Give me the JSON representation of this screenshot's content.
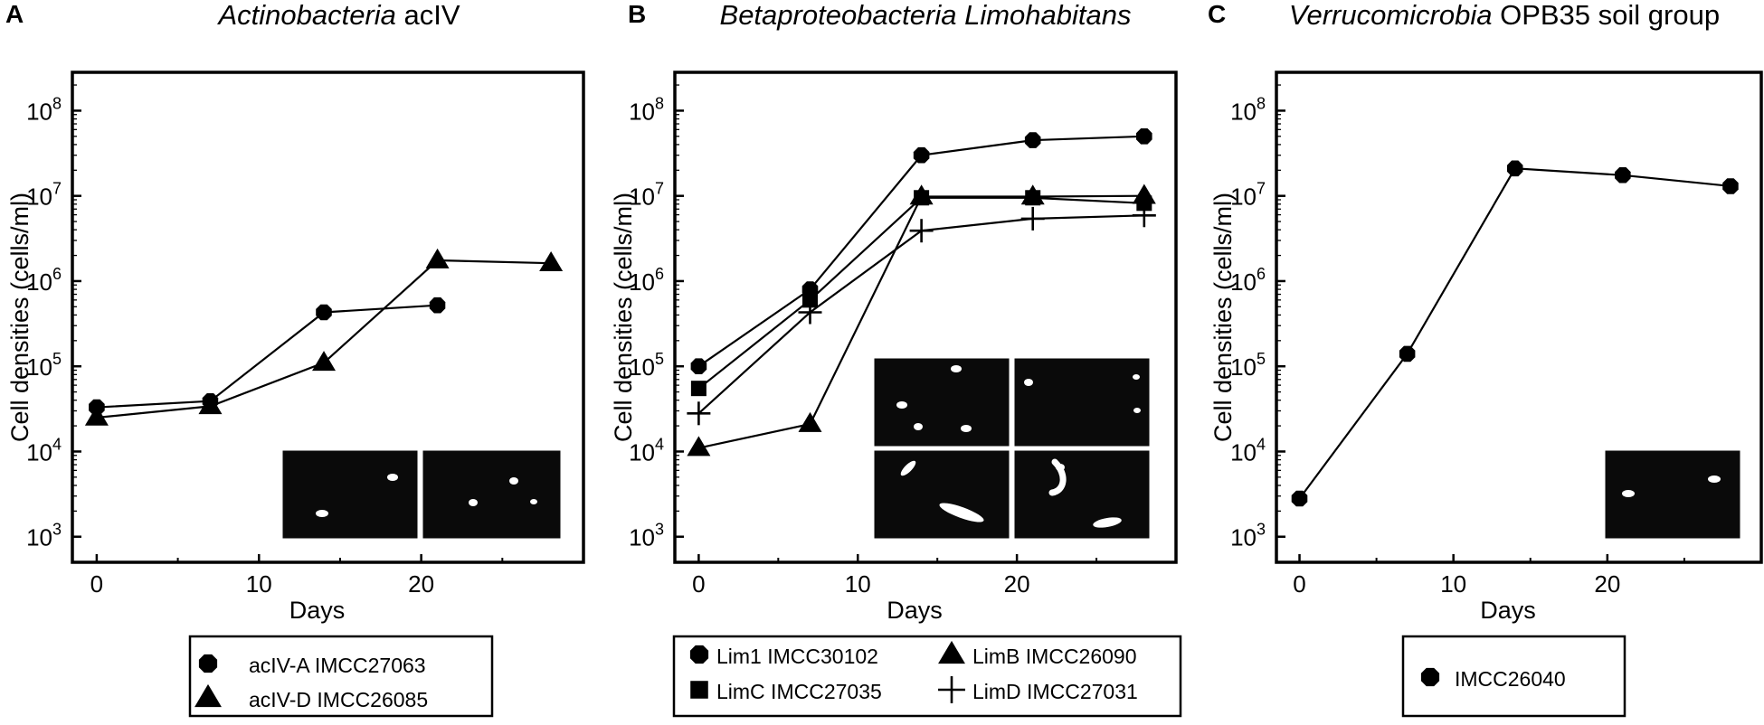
{
  "chart_data": [
    {
      "type": "line",
      "panel_letter": "A",
      "title_italic": "Actinobacteria",
      "title_rest": " acIV",
      "xlabel": "Days",
      "ylabel": "Cell densities (cells/ml)",
      "xlim": [
        -1.5,
        30
      ],
      "ylim_log10": [
        2.7,
        8.45
      ],
      "y_scale": "log",
      "x_ticks": [
        0,
        10,
        20
      ],
      "y_tick_exponents": [
        3,
        4,
        5,
        6,
        7,
        8
      ],
      "series": [
        {
          "name": "acIV-A IMCC27063",
          "marker": "circle",
          "x": [
            0,
            7,
            14,
            21
          ],
          "y": [
            33000,
            39000,
            430000,
            520000
          ]
        },
        {
          "name": "acIV-D IMCC26085",
          "marker": "triangle",
          "x": [
            0,
            7,
            14,
            21,
            28
          ],
          "y": [
            25000,
            34000,
            110000,
            1750000,
            1620000
          ]
        }
      ],
      "legend_position": "below plot"
    },
    {
      "type": "line",
      "panel_letter": "B",
      "title_italic": "Betaproteobacteria Limohabitans",
      "title_rest": "",
      "xlabel": "Days",
      "ylabel": "Cell densities (cells/ml)",
      "xlim": [
        -1.5,
        30
      ],
      "ylim_log10": [
        2.7,
        8.45
      ],
      "y_scale": "log",
      "x_ticks": [
        0,
        10,
        20
      ],
      "y_tick_exponents": [
        3,
        4,
        5,
        6,
        7,
        8
      ],
      "series": [
        {
          "name": "Lim1 IMCC30102",
          "marker": "circle",
          "x": [
            0,
            7,
            14,
            21,
            28
          ],
          "y": [
            100000,
            800000,
            30000000,
            45000000,
            50000000
          ]
        },
        {
          "name": "LimB IMCC26090",
          "marker": "triangle",
          "x": [
            0,
            7,
            14,
            21,
            28
          ],
          "y": [
            11000,
            21000,
            9800000,
            9800000,
            10000000
          ]
        },
        {
          "name": "LimC IMCC27035",
          "marker": "square",
          "x": [
            0,
            7,
            14,
            21,
            28
          ],
          "y": [
            55000,
            600000,
            9500000,
            9500000,
            8200000
          ]
        },
        {
          "name": "LimD IMCC27031",
          "marker": "plus",
          "x": [
            0,
            7,
            14,
            21,
            28
          ],
          "y": [
            28000,
            430000,
            3900000,
            5400000,
            5900000
          ]
        }
      ],
      "legend_position": "below plot"
    },
    {
      "type": "line",
      "panel_letter": "C",
      "title_italic": "Verrucomicrobia",
      "title_rest": " OPB35 soil group",
      "xlabel": "Days",
      "ylabel": "Cell densities (cells/ml)",
      "xlim": [
        -1.5,
        30
      ],
      "ylim_log10": [
        2.7,
        8.45
      ],
      "y_scale": "log",
      "x_ticks": [
        0,
        10,
        20
      ],
      "y_tick_exponents": [
        3,
        4,
        5,
        6,
        7,
        8
      ],
      "series": [
        {
          "name": "IMCC26040",
          "marker": "circle",
          "x": [
            0,
            7,
            14,
            21,
            28
          ],
          "y": [
            2800,
            140000,
            21000000,
            17500000,
            13000000
          ]
        }
      ],
      "legend_position": "below plot"
    }
  ],
  "tick_base": "10"
}
